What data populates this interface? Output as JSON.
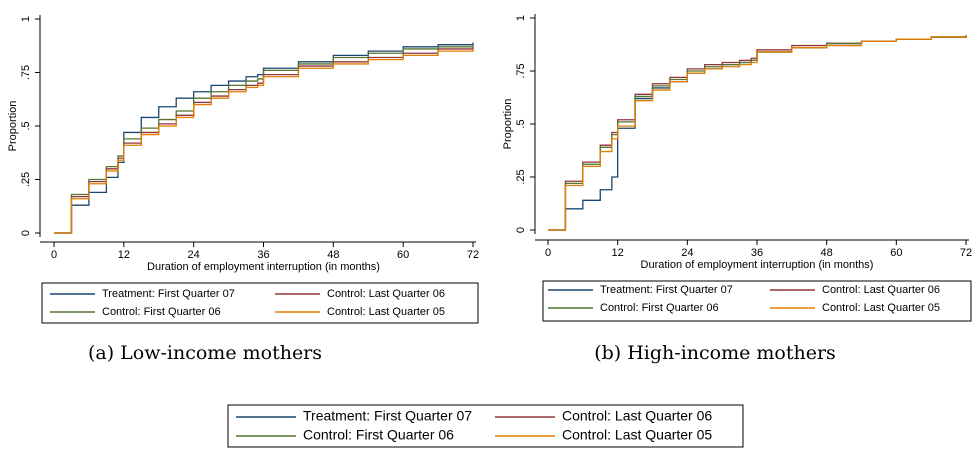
{
  "chart_data": [
    {
      "type": "line",
      "step": true,
      "caption": "(a) Low-income mothers",
      "xlabel": "Duration of employment interruption (in months)",
      "ylabel": "Proportion",
      "x": [
        0,
        3,
        6,
        9,
        11,
        12,
        15,
        18,
        21,
        24,
        27,
        30,
        33,
        35,
        36,
        42,
        48,
        54,
        60,
        66,
        72
      ],
      "xlim": [
        0,
        72
      ],
      "xticks": [
        0,
        12,
        24,
        36,
        48,
        60,
        72
      ],
      "ylim": [
        0,
        1
      ],
      "yticks": [
        0,
        {
          "value": 0.25,
          "label": ".25"
        },
        {
          "value": 0.5,
          "label": ".5"
        },
        {
          "value": 0.75,
          "label": ".75"
        },
        1
      ],
      "series": [
        {
          "name": "Treatment: First Quarter 07",
          "color": "#1a476f",
          "values": [
            0,
            0.13,
            0.19,
            0.26,
            0.33,
            0.47,
            0.54,
            0.59,
            0.63,
            0.66,
            0.69,
            0.71,
            0.73,
            0.74,
            0.77,
            0.8,
            0.83,
            0.85,
            0.87,
            0.88,
            0.89
          ]
        },
        {
          "name": "Control: Last Quarter 06",
          "color": "#90353b",
          "values": [
            0,
            0.17,
            0.24,
            0.3,
            0.35,
            0.42,
            0.47,
            0.51,
            0.55,
            0.61,
            0.64,
            0.67,
            0.69,
            0.7,
            0.74,
            0.78,
            0.8,
            0.82,
            0.84,
            0.86,
            0.87
          ]
        },
        {
          "name": "Control: First Quarter 06",
          "color": "#55752f",
          "values": [
            0,
            0.18,
            0.25,
            0.31,
            0.36,
            0.44,
            0.49,
            0.53,
            0.57,
            0.63,
            0.66,
            0.69,
            0.71,
            0.72,
            0.76,
            0.79,
            0.82,
            0.84,
            0.86,
            0.87,
            0.88
          ]
        },
        {
          "name": "Control: Last Quarter 05",
          "color": "#e37e00",
          "values": [
            0,
            0.16,
            0.23,
            0.29,
            0.34,
            0.41,
            0.46,
            0.5,
            0.54,
            0.6,
            0.63,
            0.66,
            0.68,
            0.69,
            0.73,
            0.77,
            0.79,
            0.81,
            0.83,
            0.85,
            0.86
          ]
        }
      ]
    },
    {
      "type": "line",
      "step": true,
      "caption": "(b) High-income mothers",
      "xlabel": "Duration of employment interruption (in months)",
      "ylabel": "Proportion",
      "x": [
        0,
        3,
        6,
        9,
        11,
        12,
        15,
        18,
        21,
        24,
        27,
        30,
        33,
        35,
        36,
        42,
        48,
        54,
        60,
        66,
        72
      ],
      "xlim": [
        0,
        72
      ],
      "xticks": [
        0,
        12,
        24,
        36,
        48,
        60,
        72
      ],
      "ylim": [
        0,
        1
      ],
      "yticks": [
        0,
        {
          "value": 0.25,
          "label": ".25"
        },
        {
          "value": 0.5,
          "label": ".5"
        },
        {
          "value": 0.75,
          "label": ".75"
        },
        1
      ],
      "series": [
        {
          "name": "Treatment: First Quarter 07",
          "color": "#1a476f",
          "values": [
            0,
            0.1,
            0.14,
            0.19,
            0.25,
            0.48,
            0.62,
            0.67,
            0.7,
            0.74,
            0.76,
            0.78,
            0.79,
            0.8,
            0.84,
            0.86,
            0.88,
            0.89,
            0.9,
            0.91,
            0.92
          ]
        },
        {
          "name": "Control: Last Quarter 06",
          "color": "#90353b",
          "values": [
            0,
            0.23,
            0.32,
            0.4,
            0.46,
            0.52,
            0.64,
            0.69,
            0.72,
            0.76,
            0.78,
            0.79,
            0.8,
            0.81,
            0.85,
            0.87,
            0.88,
            0.89,
            0.9,
            0.91,
            0.92
          ]
        },
        {
          "name": "Control: First Quarter 06",
          "color": "#55752f",
          "values": [
            0,
            0.22,
            0.31,
            0.39,
            0.45,
            0.51,
            0.63,
            0.68,
            0.71,
            0.75,
            0.77,
            0.78,
            0.79,
            0.8,
            0.84,
            0.86,
            0.88,
            0.89,
            0.9,
            0.91,
            0.92
          ]
        },
        {
          "name": "Control: Last Quarter 05",
          "color": "#e37e00",
          "values": [
            0,
            0.21,
            0.3,
            0.37,
            0.43,
            0.49,
            0.61,
            0.66,
            0.7,
            0.74,
            0.76,
            0.77,
            0.78,
            0.79,
            0.84,
            0.86,
            0.87,
            0.89,
            0.9,
            0.91,
            0.92
          ]
        }
      ]
    }
  ]
}
